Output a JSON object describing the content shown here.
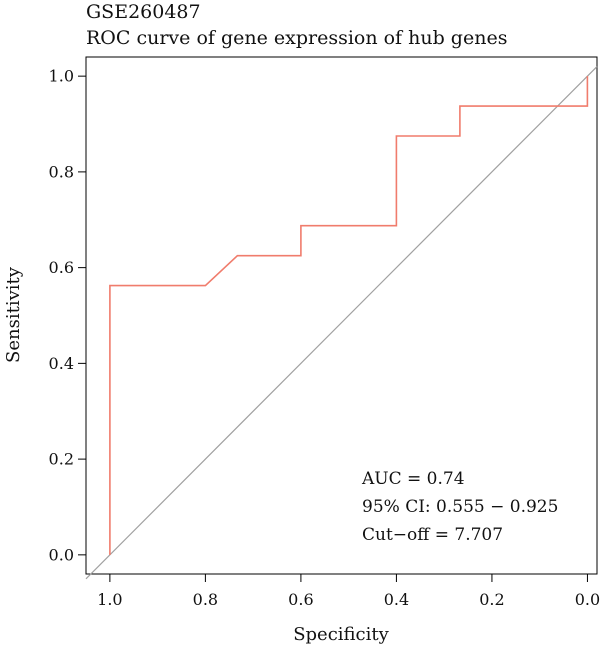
{
  "chart_data": {
    "type": "line",
    "title": "GSE260487",
    "subtitle": "ROC curve of gene expression of hub genes",
    "xlabel": "Specificity",
    "ylabel": "Sensitivity",
    "xlim": [
      1.05,
      -0.02
    ],
    "ylim": [
      -0.04,
      1.04
    ],
    "x_reversed": true,
    "xticks": [
      1.0,
      0.8,
      0.6,
      0.4,
      0.2,
      0.0
    ],
    "xtick_labels": [
      "1.0",
      "0.8",
      "0.6",
      "0.4",
      "0.2",
      "0.0"
    ],
    "yticks": [
      0.0,
      0.2,
      0.4,
      0.6,
      0.8,
      1.0
    ],
    "ytick_labels": [
      "0.0",
      "0.2",
      "0.4",
      "0.6",
      "0.8",
      "1.0"
    ],
    "grid": false,
    "series": [
      {
        "color": "#f07c6c",
        "points": [
          {
            "x": 1.0,
            "y": 0.0
          },
          {
            "x": 1.0,
            "y": 0.5625
          },
          {
            "x": 0.8,
            "y": 0.5625
          },
          {
            "x": 0.733,
            "y": 0.625
          },
          {
            "x": 0.6,
            "y": 0.625
          },
          {
            "x": 0.6,
            "y": 0.6875
          },
          {
            "x": 0.4,
            "y": 0.6875
          },
          {
            "x": 0.4,
            "y": 0.875
          },
          {
            "x": 0.267,
            "y": 0.875
          },
          {
            "x": 0.267,
            "y": 0.9375
          },
          {
            "x": 0.0,
            "y": 0.9375
          },
          {
            "x": 0.0,
            "y": 1.0
          }
        ]
      }
    ],
    "reference_line": {
      "color": "#a0a0a0",
      "from": {
        "x": 1.0,
        "y": 0.0
      },
      "to": {
        "x": 0.0,
        "y": 1.0
      }
    },
    "annotations": [
      "AUC = 0.74",
      "95% CI: 0.555 − 0.925",
      "Cut−off = 7.707"
    ]
  }
}
